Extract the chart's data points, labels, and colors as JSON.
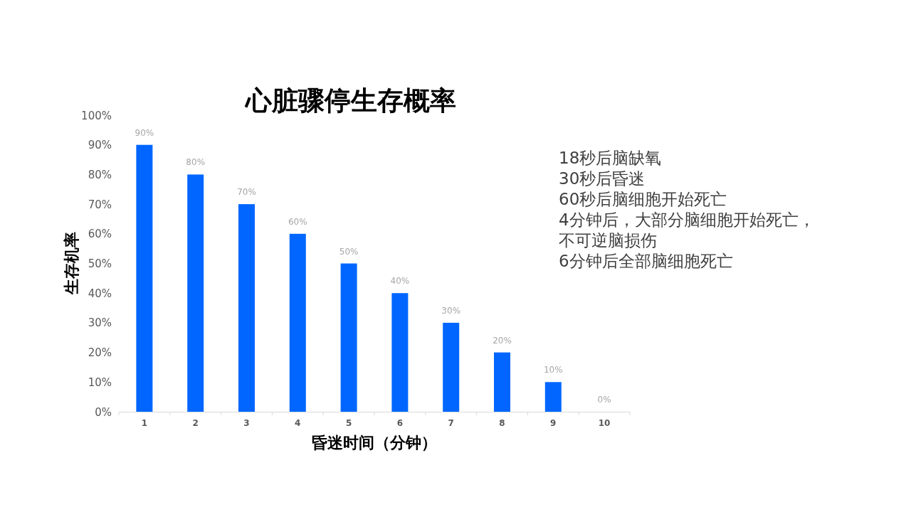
{
  "chart_data": {
    "type": "bar",
    "title": "心脏骤停生存概率",
    "xlabel": "昏迷时间（分钟）",
    "ylabel": "生存机率",
    "categories": [
      "1",
      "2",
      "3",
      "4",
      "5",
      "6",
      "7",
      "8",
      "9",
      "10"
    ],
    "values": [
      90,
      80,
      70,
      60,
      50,
      40,
      30,
      20,
      10,
      0
    ],
    "value_labels": [
      "90%",
      "80%",
      "70%",
      "60%",
      "50%",
      "40%",
      "30%",
      "20%",
      "10%",
      "0%"
    ],
    "color": "#0066ff",
    "ylim": [
      0,
      100
    ],
    "yticks": [
      {
        "value": 0,
        "label": "0%"
      },
      {
        "value": 10,
        "label": "10%"
      },
      {
        "value": 20,
        "label": "20%"
      },
      {
        "value": 30,
        "label": "30%"
      },
      {
        "value": 40,
        "label": "40%"
      },
      {
        "value": 50,
        "label": "50%"
      },
      {
        "value": 60,
        "label": "60%"
      },
      {
        "value": 70,
        "label": "70%"
      },
      {
        "value": 80,
        "label": "80%"
      },
      {
        "value": 90,
        "label": "90%"
      },
      {
        "value": 100,
        "label": "100%"
      }
    ],
    "annotations": [
      "18秒后脑缺氧",
      "30秒后昏迷",
      "60秒后脑细胞开始死亡",
      "4分钟后，大部分脑细胞开始死亡，不可逆脑损伤",
      "6分钟后全部脑细胞死亡"
    ]
  }
}
